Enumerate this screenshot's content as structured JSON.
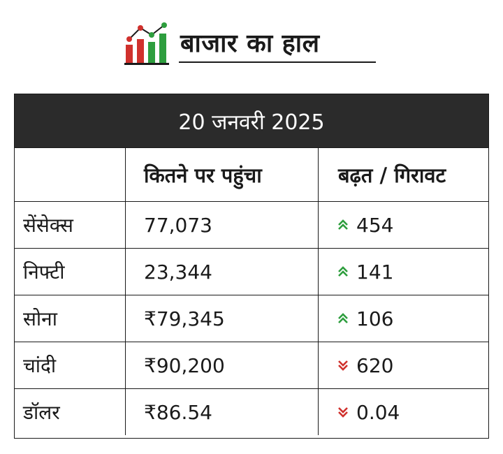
{
  "header": {
    "title": "बाजार का हाल",
    "logo_icon": "market-chart-icon",
    "colors": {
      "red": "#d0312d",
      "green": "#2e9e3e",
      "dark": "#2b2b2b"
    }
  },
  "table": {
    "date": "20 जनवरी 2025",
    "columns": [
      "",
      "कितने पर पहुंचा",
      "बढ़त / गिरावट"
    ],
    "rows": [
      {
        "name": "सेंसेक्स",
        "value": "77,073",
        "change": "454",
        "direction": "up"
      },
      {
        "name": "निफ्टी",
        "value": "23,344",
        "change": "141",
        "direction": "up"
      },
      {
        "name": "सोना",
        "value": "₹79,345",
        "change": "106",
        "direction": "up"
      },
      {
        "name": "चांदी",
        "value": "₹90,200",
        "change": "620",
        "direction": "down"
      },
      {
        "name": "डॉलर",
        "value": "₹86.54",
        "change": "0.04",
        "direction": "down"
      }
    ],
    "arrow_colors": {
      "up": "#2e9e3e",
      "down": "#d0312d"
    }
  }
}
